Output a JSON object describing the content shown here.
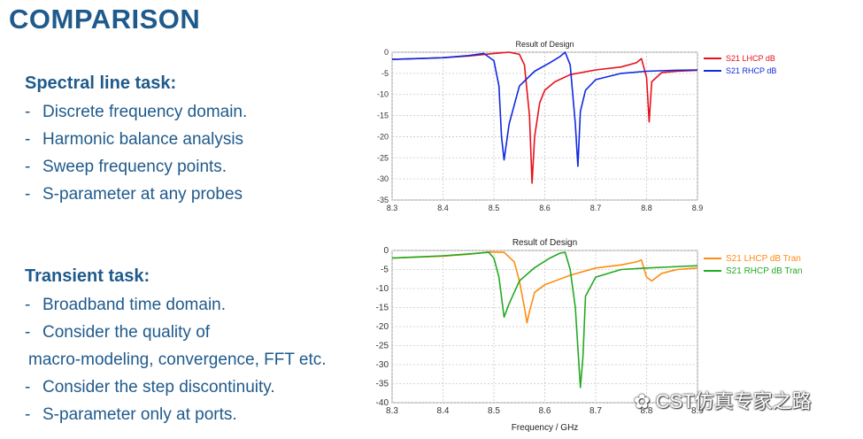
{
  "slide": {
    "title": "COMPARISON",
    "spectral": {
      "heading": "Spectral line task:",
      "items": [
        "Discrete frequency domain.",
        "Harmonic balance analysis",
        "Sweep frequency points.",
        "S-parameter at any probes"
      ]
    },
    "transient": {
      "heading": "Transient task:",
      "items": [
        "Broadband time domain.",
        "Consider the quality of",
        "macro-modeling, convergence, FFT etc.",
        "Consider the step discontinuity.",
        "S-parameter only at ports."
      ]
    },
    "watermark": "CST仿真专家之路"
  },
  "chart_data": [
    {
      "type": "line",
      "title": "Result of Design",
      "xlabel": "",
      "ylabel": "",
      "xlim": [
        8.3,
        8.9
      ],
      "ylim": [
        -35,
        0
      ],
      "xticks": [
        "8.3",
        "8.4",
        "8.5",
        "8.6",
        "8.7",
        "8.8",
        "8.9"
      ],
      "yticks": [
        "0",
        "-5",
        "-10",
        "-15",
        "-20",
        "-25",
        "-30",
        "-35"
      ],
      "legend": "top-right",
      "series": [
        {
          "name": "S21 LHCP dB",
          "color": "#e8101a",
          "x": [
            8.3,
            8.35,
            8.4,
            8.45,
            8.5,
            8.53,
            8.55,
            8.56,
            8.57,
            8.575,
            8.58,
            8.59,
            8.6,
            8.62,
            8.65,
            8.7,
            8.75,
            8.78,
            8.79,
            8.8,
            8.805,
            8.81,
            8.83,
            8.86,
            8.9
          ],
          "y": [
            -1.7,
            -1.5,
            -1.3,
            -0.9,
            -0.3,
            0,
            -0.5,
            -3,
            -15,
            -31,
            -20,
            -12,
            -9,
            -7,
            -5.3,
            -4.2,
            -3.5,
            -2.5,
            -1.5,
            -6,
            -16.5,
            -7,
            -4.8,
            -4.5,
            -4.3
          ]
        },
        {
          "name": "S21 RHCP dB",
          "color": "#1028e0",
          "x": [
            8.3,
            8.35,
            8.4,
            8.45,
            8.48,
            8.5,
            8.51,
            8.515,
            8.52,
            8.53,
            8.55,
            8.58,
            8.61,
            8.63,
            8.64,
            8.65,
            8.66,
            8.665,
            8.67,
            8.68,
            8.7,
            8.75,
            8.8,
            8.85,
            8.9
          ],
          "y": [
            -1.7,
            -1.5,
            -1.3,
            -0.8,
            -0.3,
            -2,
            -8,
            -20,
            -25.5,
            -17,
            -8,
            -4.5,
            -2.5,
            -1,
            0,
            -3,
            -17,
            -27,
            -14,
            -9,
            -6.5,
            -5,
            -4.5,
            -4.3,
            -4.2
          ]
        }
      ]
    },
    {
      "type": "line",
      "title": "Result of Design",
      "xlabel": "Frequency / GHz",
      "ylabel": "",
      "xlim": [
        8.3,
        8.9
      ],
      "ylim": [
        -40,
        0
      ],
      "xticks": [
        "8.3",
        "8.4",
        "8.5",
        "8.6",
        "8.7",
        "8.8",
        "8.9"
      ],
      "yticks": [
        "0",
        "-5",
        "-10",
        "-15",
        "-20",
        "-25",
        "-30",
        "-35",
        "-40"
      ],
      "legend": "top-right",
      "series": [
        {
          "name": "S21 LHCP dB Tran",
          "color": "#ff8c10",
          "x": [
            8.3,
            8.4,
            8.45,
            8.49,
            8.52,
            8.54,
            8.55,
            8.56,
            8.565,
            8.57,
            8.58,
            8.6,
            8.65,
            8.7,
            8.75,
            8.78,
            8.79,
            8.8,
            8.81,
            8.83,
            8.86,
            8.9
          ],
          "y": [
            -2,
            -1.5,
            -1,
            -0.4,
            -0.5,
            -3,
            -8,
            -15,
            -19,
            -16,
            -11,
            -9,
            -6.5,
            -4.6,
            -3.8,
            -3,
            -2.5,
            -7,
            -8,
            -6,
            -5,
            -4.6
          ]
        },
        {
          "name": "S21 RHCP dB Tran",
          "color": "#22aa22",
          "x": [
            8.3,
            8.35,
            8.4,
            8.45,
            8.49,
            8.5,
            8.51,
            8.52,
            8.53,
            8.55,
            8.58,
            8.61,
            8.63,
            8.64,
            8.65,
            8.66,
            8.67,
            8.675,
            8.68,
            8.7,
            8.75,
            8.8,
            8.85,
            8.9
          ],
          "y": [
            -2,
            -1.7,
            -1.4,
            -0.9,
            -0.5,
            -2,
            -7,
            -17.5,
            -14,
            -8,
            -4.5,
            -2,
            -0.7,
            -0.5,
            -5,
            -15,
            -36,
            -28,
            -12,
            -7,
            -5,
            -4.6,
            -4.3,
            -4
          ]
        }
      ]
    }
  ]
}
